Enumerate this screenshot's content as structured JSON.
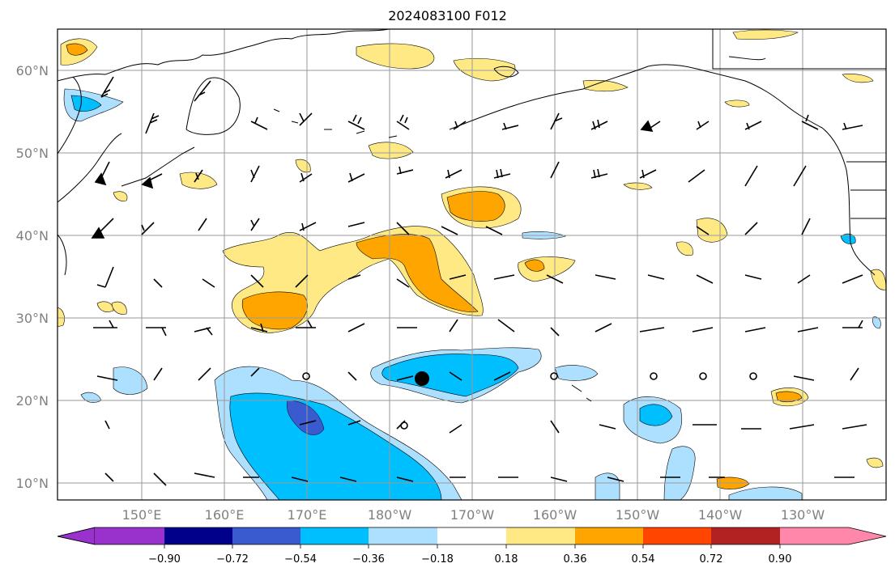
{
  "title": "2024083100 F012",
  "lat_labels": [
    "60°N",
    "50°N",
    "40°N",
    "30°N",
    "20°N",
    "10°N"
  ],
  "lon_labels": [
    "150°E",
    "160°E",
    "170°E",
    "180°W",
    "170°W",
    "160°W",
    "150°W",
    "140°W",
    "130°W"
  ],
  "colorbar": {
    "ticks": [
      "−0.90",
      "−0.72",
      "−0.54",
      "−0.36",
      "−0.18",
      "0.18",
      "0.36",
      "0.54",
      "0.72",
      "0.90"
    ],
    "colors": [
      "#9932CC",
      "#00008B",
      "#3A5BCF",
      "#00BFFF",
      "#ADDFFF",
      "#FFFFFF",
      "#FFE985",
      "#FFA500",
      "#FF4500",
      "#B22222",
      "#FF88AA"
    ]
  },
  "marker_point": "black-dot"
}
